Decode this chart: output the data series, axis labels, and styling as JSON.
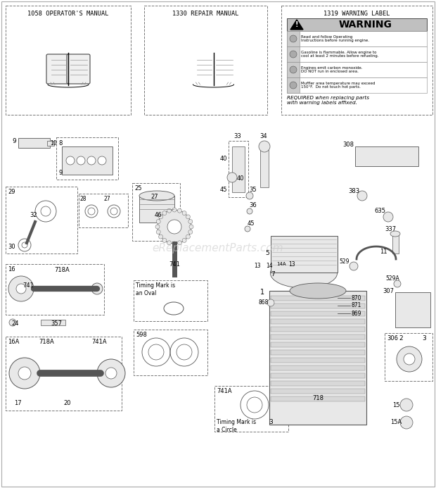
{
  "bg_color": "#ffffff",
  "watermark": "eReplacementParts.com",
  "box1_title": "1058 OPERATOR'S MANUAL",
  "box2_title": "1330 REPAIR MANUAL",
  "box3_title": "1319 WARNING LABEL",
  "warning_text": "WARNING",
  "required_text": "REQUIRED when replacing parts\nwith warning labels affixed.",
  "line_color": "#555555",
  "fill_light": "#e8e8e8",
  "fill_mid": "#d0d0d0",
  "text_color": "#000000"
}
